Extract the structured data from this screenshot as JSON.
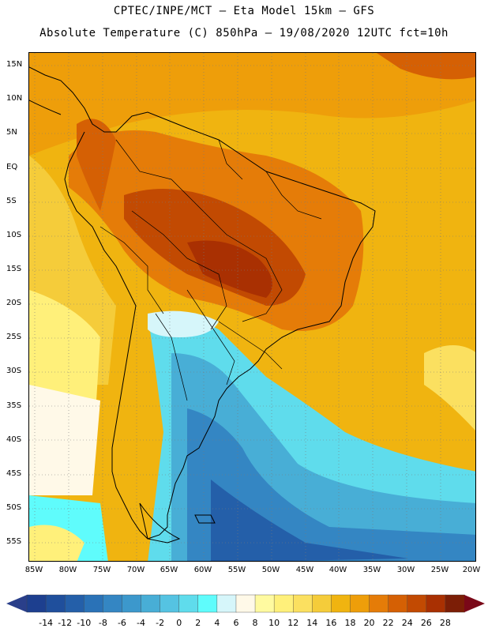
{
  "header": {
    "line1": "CPTEC/INPE/MCT – Eta Model 15km – GFS",
    "line2": "Absolute Temperature (C) 850hPa – 19/08/2020 12UTC fct=10h"
  },
  "axes": {
    "lat_labels": [
      "15N",
      "10N",
      "5N",
      "EQ",
      "5S",
      "10S",
      "15S",
      "20S",
      "25S",
      "30S",
      "35S",
      "40S",
      "45S",
      "50S",
      "55S"
    ],
    "lon_labels": [
      "85W",
      "80W",
      "75W",
      "70W",
      "65W",
      "60W",
      "55W",
      "50W",
      "45W",
      "40W",
      "35W",
      "30W",
      "25W",
      "20W"
    ]
  },
  "colorbar": {
    "labels": [
      "-14",
      "-12",
      "-10",
      "-8",
      "-6",
      "-4",
      "-2",
      "0",
      "2",
      "4",
      "6",
      "8",
      "10",
      "12",
      "14",
      "16",
      "18",
      "20",
      "22",
      "24",
      "26",
      "28"
    ],
    "colors": [
      "#1d3f8f",
      "#1f4f9c",
      "#245fa9",
      "#2a72b7",
      "#3486c3",
      "#3c98cc",
      "#48aed6",
      "#55c3e2",
      "#5fdcec",
      "#5ffcfc",
      "#d6f6fa",
      "#fff9e8",
      "#fffaa0",
      "#fff07a",
      "#fbe060",
      "#f5cc3a",
      "#f0b410",
      "#ee9e0a",
      "#e57c08",
      "#d56004",
      "#c24a02",
      "#a93002",
      "#7c1e06"
    ],
    "low_color": "#2a3f8a",
    "high_color": "#7a0818"
  }
}
